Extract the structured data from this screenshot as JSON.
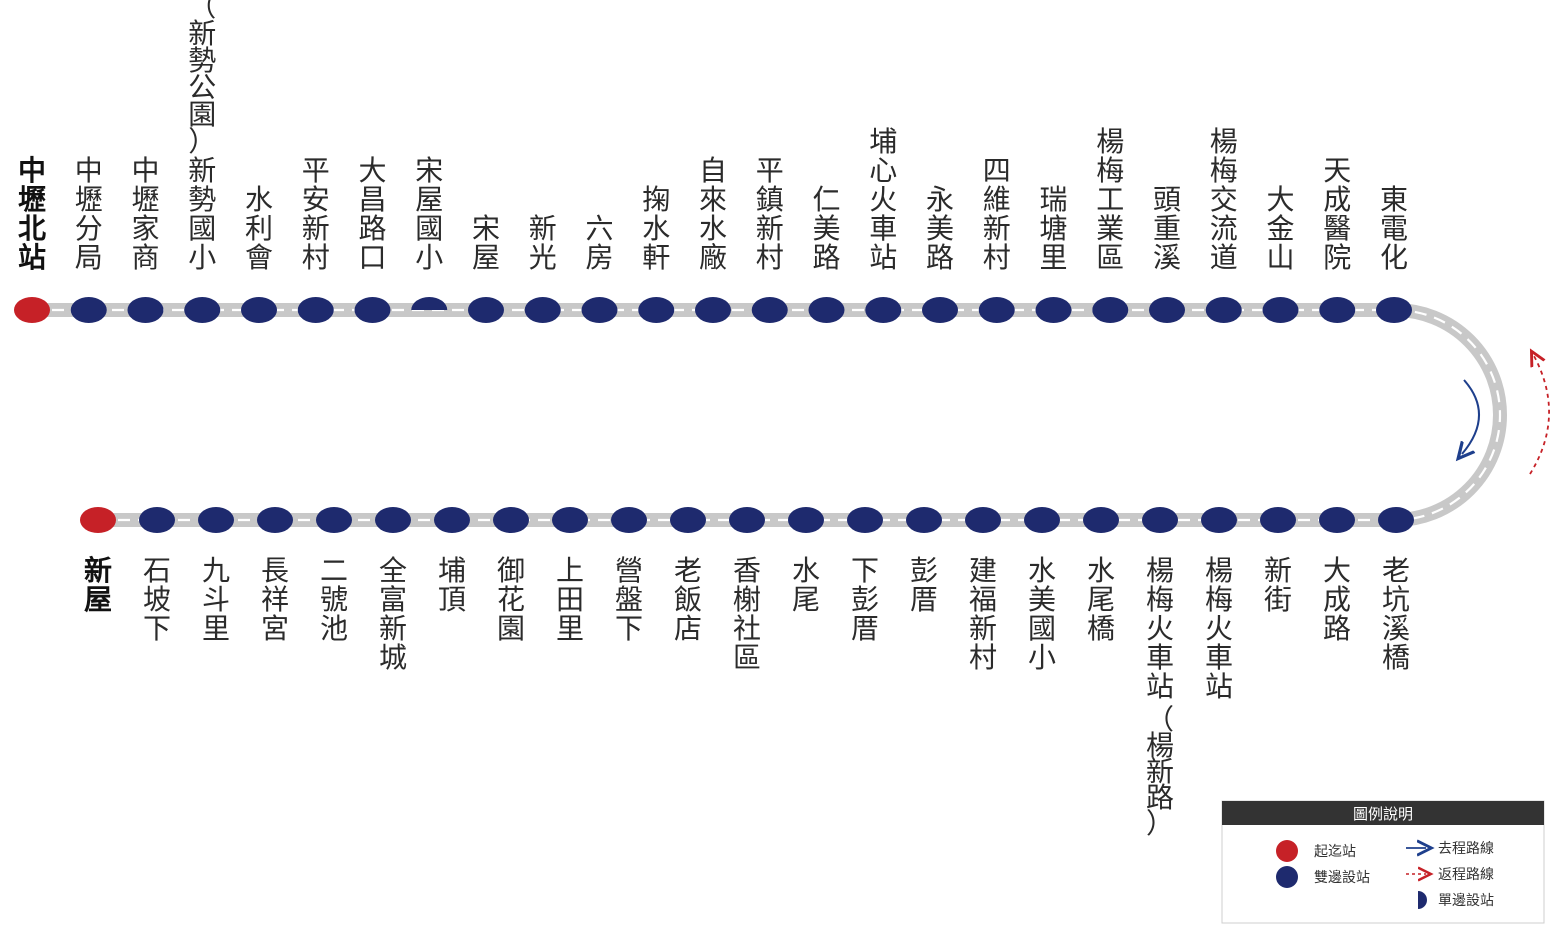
{
  "colors": {
    "terminal": "#c62127",
    "station": "#1e2a6e",
    "track": "#c8c8c8",
    "track_dash": "#ffffff",
    "outbound_arrow": "#1e3f8c",
    "return_arrow": "#c62127",
    "legend_header": "#333333"
  },
  "top_row": [
    {
      "name": "中壢北站",
      "type": "terminal"
    },
    {
      "name": "中壢分局",
      "type": "both"
    },
    {
      "name": "中壢家商",
      "type": "both"
    },
    {
      "name": "新勢國小",
      "note": "（新勢公園）",
      "type": "both"
    },
    {
      "name": "水利會",
      "type": "both"
    },
    {
      "name": "平安新村",
      "type": "both"
    },
    {
      "name": "大昌路口",
      "type": "both"
    },
    {
      "name": "宋屋國小",
      "type": "one-way"
    },
    {
      "name": "宋屋",
      "type": "both"
    },
    {
      "name": "新光",
      "type": "both"
    },
    {
      "name": "六房",
      "type": "both"
    },
    {
      "name": "掬水軒",
      "type": "both"
    },
    {
      "name": "自來水廠",
      "type": "both"
    },
    {
      "name": "平鎮新村",
      "type": "both"
    },
    {
      "name": "仁美路",
      "type": "both"
    },
    {
      "name": "埔心火車站",
      "type": "both"
    },
    {
      "name": "永美路",
      "type": "both"
    },
    {
      "name": "四維新村",
      "type": "both"
    },
    {
      "name": "瑞塘里",
      "type": "both"
    },
    {
      "name": "楊梅工業區",
      "type": "both"
    },
    {
      "name": "頭重溪",
      "type": "both"
    },
    {
      "name": "楊梅交流道",
      "type": "both"
    },
    {
      "name": "大金山",
      "type": "both"
    },
    {
      "name": "天成醫院",
      "type": "both"
    },
    {
      "name": "東電化",
      "type": "both"
    }
  ],
  "bottom_row": [
    {
      "name": "新屋",
      "type": "terminal"
    },
    {
      "name": "石坡下",
      "type": "both"
    },
    {
      "name": "九斗里",
      "type": "both"
    },
    {
      "name": "長祥宮",
      "type": "both"
    },
    {
      "name": "二號池",
      "type": "both"
    },
    {
      "name": "全富新城",
      "type": "both"
    },
    {
      "name": "埔頂",
      "type": "both"
    },
    {
      "name": "御花園",
      "type": "both"
    },
    {
      "name": "上田里",
      "type": "both"
    },
    {
      "name": "營盤下",
      "type": "both"
    },
    {
      "name": "老飯店",
      "type": "both"
    },
    {
      "name": "香榭社區",
      "type": "both"
    },
    {
      "name": "水尾",
      "type": "both"
    },
    {
      "name": "下彭厝",
      "type": "both"
    },
    {
      "name": "彭厝",
      "type": "both"
    },
    {
      "name": "建福新村",
      "type": "both"
    },
    {
      "name": "水美國小",
      "type": "both"
    },
    {
      "name": "水尾橋",
      "type": "both"
    },
    {
      "name": "楊梅火車站",
      "note": "（楊新路）",
      "type": "both"
    },
    {
      "name": "楊梅火車站",
      "type": "both"
    },
    {
      "name": "新街",
      "type": "both"
    },
    {
      "name": "大成路",
      "type": "both"
    },
    {
      "name": "老坑溪橋",
      "type": "both"
    }
  ],
  "legend": {
    "title": "圖例說明",
    "items": [
      {
        "icon": "terminal-dot",
        "label": "起迄站"
      },
      {
        "icon": "station-dot",
        "label": "雙邊設站"
      },
      {
        "icon": "outbound-arrow",
        "label": "去程路線"
      },
      {
        "icon": "return-arrow",
        "label": "返程路線"
      },
      {
        "icon": "half-dot",
        "label": "單邊設站"
      }
    ]
  }
}
